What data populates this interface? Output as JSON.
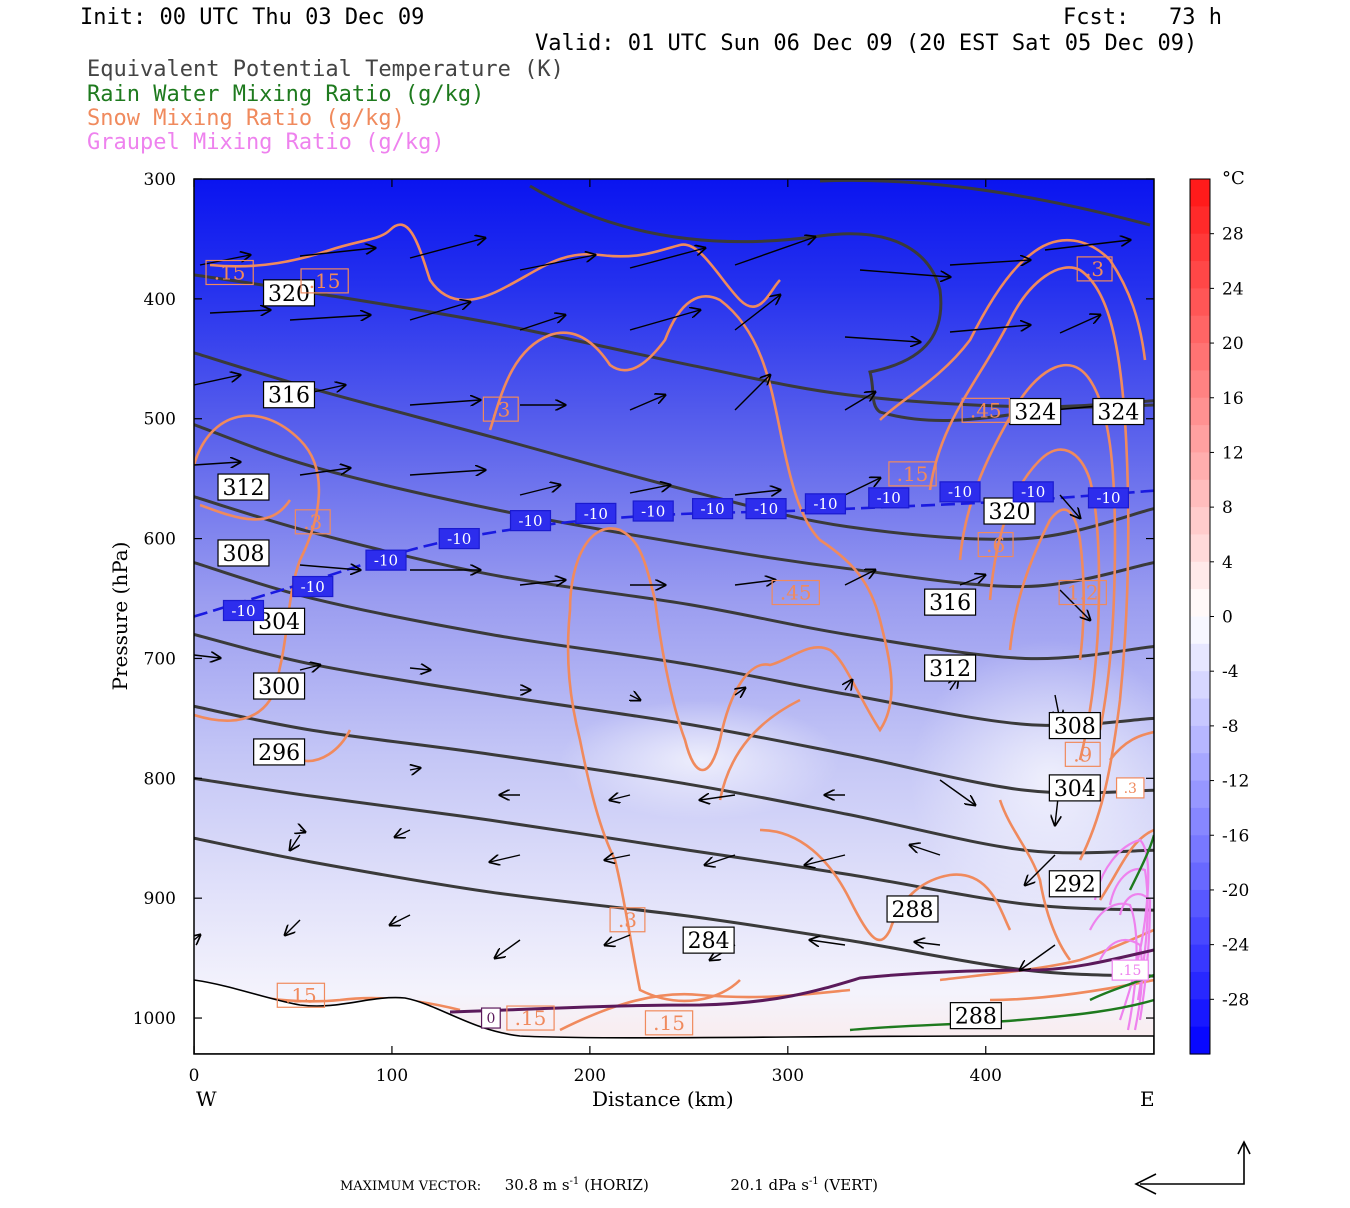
{
  "header": {
    "init": "Init: 00 UTC Thu 03 Dec 09",
    "fcst": "Fcst:   73 h",
    "valid": "Valid: 01 UTC Sun 06 Dec 09 (20 EST Sat 05 Dec 09)",
    "legend": [
      {
        "label": "Equivalent Potential Temperature (K)",
        "color": "#444444"
      },
      {
        "label": "Rain Water Mixing Ratio (g/kg)",
        "color": "#1e7a1e"
      },
      {
        "label": "Snow Mixing Ratio (g/kg)",
        "color": "#f08a5d"
      },
      {
        "label": "Graupel Mixing Ratio (g/kg)",
        "color": "#ee82ee"
      }
    ]
  },
  "footer": {
    "max_vector_label": "MAXIMUM VECTOR:",
    "horiz": "30.8 m s",
    "horiz_sup": "-1",
    "horiz_tag": "(HORIZ)",
    "vert": "20.1 dPa s",
    "vert_sup": "-1",
    "vert_tag": "(VERT)"
  },
  "chart_data": {
    "type": "contour-cross-section",
    "xlabel": "Distance (km)",
    "ylabel": "Pressure (hPa)",
    "x_left_label": "W",
    "x_right_label": "E",
    "xlim": [
      0,
      485
    ],
    "ylim": [
      1030,
      300
    ],
    "x_ticks": [
      0,
      100,
      200,
      300,
      400
    ],
    "y_ticks": [
      300,
      400,
      500,
      600,
      700,
      800,
      900,
      1000
    ],
    "colorbar": {
      "unit": "°C",
      "labels": [
        28,
        24,
        20,
        16,
        12,
        8,
        4,
        0,
        -4,
        -8,
        -12,
        -16,
        -20,
        -24,
        -28
      ],
      "range": [
        -32,
        32
      ]
    },
    "theta_e_contours": [
      {
        "value": 320,
        "x": [
          0,
          60,
          150,
          250,
          330,
          420,
          485
        ],
        "p": [
          380,
          395,
          420,
          455,
          480,
          490,
          485
        ]
      },
      {
        "value": 316,
        "x": [
          0,
          60,
          150,
          250,
          330,
          420,
          485
        ],
        "p": [
          445,
          475,
          515,
          560,
          590,
          600,
          575
        ]
      },
      {
        "value": 312,
        "x": [
          0,
          60,
          150,
          250,
          330,
          420,
          485
        ],
        "p": [
          505,
          540,
          575,
          605,
          625,
          640,
          620
        ]
      },
      {
        "value": 308,
        "x": [
          0,
          60,
          150,
          250,
          330,
          420,
          485
        ],
        "p": [
          565,
          595,
          630,
          655,
          680,
          700,
          690
        ]
      },
      {
        "value": 304,
        "x": [
          0,
          60,
          150,
          250,
          330,
          420,
          485
        ],
        "p": [
          620,
          650,
          680,
          705,
          730,
          755,
          750
        ]
      },
      {
        "value": 300,
        "x": [
          0,
          60,
          150,
          250,
          330,
          420,
          485
        ],
        "p": [
          680,
          705,
          730,
          755,
          780,
          810,
          810
        ]
      },
      {
        "value": 296,
        "x": [
          0,
          60,
          150,
          250,
          330,
          420,
          485
        ],
        "p": [
          740,
          760,
          780,
          805,
          830,
          860,
          860
        ]
      },
      {
        "value": 292,
        "x": [
          0,
          60,
          150,
          250,
          330,
          420,
          485
        ],
        "p": [
          800,
          815,
          835,
          860,
          880,
          905,
          910
        ]
      },
      {
        "value": 288,
        "x": [
          0,
          60,
          150,
          250,
          330,
          420,
          485
        ],
        "p": [
          850,
          870,
          895,
          915,
          935,
          960,
          965
        ]
      }
    ],
    "theta_e_labels": [
      {
        "text": "320",
        "x": 48,
        "p": 395
      },
      {
        "text": "316",
        "x": 48,
        "p": 480
      },
      {
        "text": "312",
        "x": 25,
        "p": 557
      },
      {
        "text": "308",
        "x": 25,
        "p": 612
      },
      {
        "text": "304",
        "x": 43,
        "p": 669
      },
      {
        "text": "300",
        "x": 43,
        "p": 723
      },
      {
        "text": "296",
        "x": 43,
        "p": 778
      },
      {
        "text": "324",
        "x": 425,
        "p": 494
      },
      {
        "text": "324",
        "x": 467,
        "p": 494
      },
      {
        "text": "320",
        "x": 412,
        "p": 577
      },
      {
        "text": "316",
        "x": 382,
        "p": 653
      },
      {
        "text": "312",
        "x": 382,
        "p": 708
      },
      {
        "text": "308",
        "x": 445,
        "p": 756
      },
      {
        "text": "304",
        "x": 445,
        "p": 808
      },
      {
        "text": "292",
        "x": 445,
        "p": 888
      },
      {
        "text": "288",
        "x": 363,
        "p": 909
      },
      {
        "text": "284",
        "x": 260,
        "p": 935
      },
      {
        "text": "288",
        "x": 395,
        "p": 998
      }
    ],
    "isotherm_minus10": {
      "value": -10,
      "x": [
        0,
        60,
        120,
        180,
        240,
        300,
        360,
        420,
        485
      ],
      "p": [
        665,
        635,
        605,
        588,
        580,
        577,
        573,
        568,
        560
      ],
      "labels": [
        {
          "text": "-10",
          "x": 25,
          "p": 660
        },
        {
          "text": "-10",
          "x": 60,
          "p": 640
        },
        {
          "text": "-10",
          "x": 97,
          "p": 618
        },
        {
          "text": "-10",
          "x": 134,
          "p": 600
        },
        {
          "text": "-10",
          "x": 170,
          "p": 585
        },
        {
          "text": "-10",
          "x": 203,
          "p": 579
        },
        {
          "text": "-10",
          "x": 232,
          "p": 577
        },
        {
          "text": "-10",
          "x": 262,
          "p": 575
        },
        {
          "text": "-10",
          "x": 289,
          "p": 575
        },
        {
          "text": "-10",
          "x": 319,
          "p": 571
        },
        {
          "text": "-10",
          "x": 351,
          "p": 566
        },
        {
          "text": "-10",
          "x": 387,
          "p": 561
        },
        {
          "text": "-10",
          "x": 424,
          "p": 561
        },
        {
          "text": "-10",
          "x": 462,
          "p": 566
        }
      ]
    },
    "snow_labels": [
      {
        "text": ".15",
        "x": 18,
        "p": 378
      },
      {
        "text": ".15",
        "x": 66,
        "p": 385
      },
      {
        "text": ".3",
        "x": 155,
        "p": 492
      },
      {
        "text": ".3",
        "x": 60,
        "p": 586
      },
      {
        "text": ".45",
        "x": 304,
        "p": 645
      },
      {
        "text": ".15",
        "x": 363,
        "p": 546
      },
      {
        "text": ".45",
        "x": 400,
        "p": 493
      },
      {
        "text": ".6",
        "x": 405,
        "p": 605
      },
      {
        "text": "1.2",
        "x": 449,
        "p": 645
      },
      {
        "text": ".3",
        "x": 455,
        "p": 375
      },
      {
        "text": ".9",
        "x": 449,
        "p": 780
      },
      {
        "text": ".3",
        "x": 219,
        "p": 918
      },
      {
        "text": ".15",
        "x": 54,
        "p": 981
      },
      {
        "text": ".15",
        "x": 170,
        "p": 1000
      },
      {
        "text": ".15",
        "x": 240,
        "p": 1004
      }
    ],
    "misc_labels": [
      {
        "text": "0",
        "x": 150,
        "p": 1000,
        "color": "#5b1a5b"
      },
      {
        "text": ".3",
        "x": 473,
        "p": 808,
        "color": "#f08a5d"
      },
      {
        "text": ".15",
        "x": 473,
        "p": 960,
        "color": "#ee82ee"
      }
    ]
  }
}
